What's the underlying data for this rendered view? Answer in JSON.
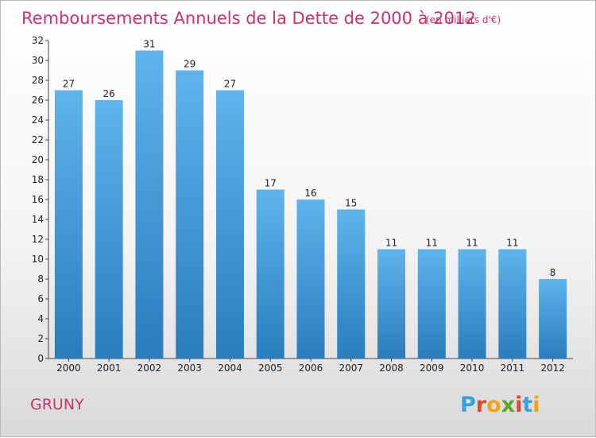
{
  "title": "Remboursements Annuels de la Dette de 2000 à 2012",
  "subtitle": "(en milliers d'€)",
  "commune": "GRUNY",
  "logo": {
    "letters": [
      "P",
      "r",
      "o",
      "x",
      "i",
      "t",
      "i"
    ],
    "colors": [
      "#3aa0d8",
      "#e8462b",
      "#f0a21b",
      "#5aa829",
      "#e8462b",
      "#3aa0d8",
      "#f0a21b"
    ]
  },
  "colors": {
    "title": "#c8336e",
    "bar_top": "#5eb4ec",
    "bar_bottom": "#2a7dbd"
  },
  "chart_data": {
    "type": "bar",
    "categories": [
      "2000",
      "2001",
      "2002",
      "2003",
      "2004",
      "2005",
      "2006",
      "2007",
      "2008",
      "2009",
      "2010",
      "2011",
      "2012"
    ],
    "values": [
      27,
      26,
      31,
      29,
      27,
      17,
      16,
      15,
      11,
      11,
      11,
      11,
      8
    ],
    "ylim": [
      0,
      32
    ],
    "yticks": [
      0,
      2,
      4,
      6,
      8,
      10,
      12,
      14,
      16,
      18,
      20,
      22,
      24,
      26,
      28,
      30,
      32
    ],
    "grid": false,
    "data_labels": true
  }
}
